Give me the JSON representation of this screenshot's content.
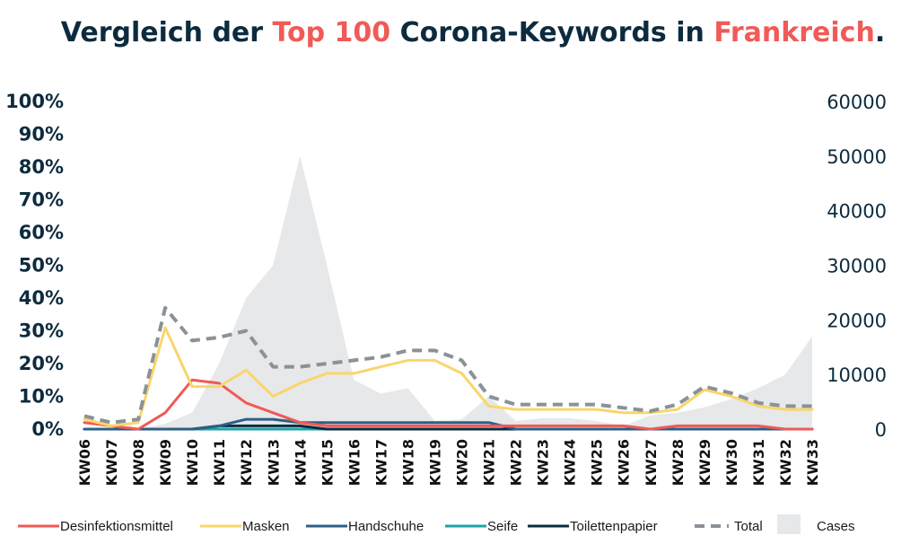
{
  "title": {
    "parts": [
      {
        "text": "Vergleich der ",
        "accent": false
      },
      {
        "text": "Top 100",
        "accent": true
      },
      {
        "text": " Corona-Keywords in ",
        "accent": false
      },
      {
        "text": "Frankreich",
        "accent": true
      },
      {
        "text": ".",
        "accent": false
      }
    ]
  },
  "colors": {
    "title": "#0d2b3e",
    "accent": "#f05a57",
    "grid_text": "#0d2b3e"
  },
  "chart_data": {
    "type": "line",
    "x": [
      "KW06",
      "KW07",
      "KW08",
      "KW09",
      "KW10",
      "KW11",
      "KW12",
      "KW13",
      "KW14",
      "KW15",
      "KW16",
      "KW17",
      "KW18",
      "KW19",
      "KW20",
      "KW21",
      "KW22",
      "KW23",
      "KW24",
      "KW25",
      "KW26",
      "KW27",
      "KW28",
      "KW29",
      "KW30",
      "KW31",
      "KW32",
      "KW33"
    ],
    "y_left": {
      "ticks": [
        "0%",
        "10%",
        "20%",
        "30%",
        "40%",
        "50%",
        "60%",
        "70%",
        "80%",
        "90%",
        "100%"
      ],
      "ylim": [
        0,
        100
      ]
    },
    "y_right": {
      "ticks": [
        "0",
        "10000",
        "20000",
        "30000",
        "40000",
        "50000",
        "60000"
      ],
      "ylim": [
        0,
        60000
      ]
    },
    "grid": false,
    "legend_position": "bottom",
    "series": [
      {
        "name": "Desinfektionsmittel",
        "color": "#f05a57",
        "style": "solid",
        "axis": "left",
        "values": [
          2,
          1,
          0,
          5,
          15,
          14,
          8,
          5,
          2,
          1,
          1,
          1,
          1,
          1,
          1,
          1,
          1,
          1,
          1,
          1,
          1,
          0,
          1,
          1,
          1,
          1,
          0,
          0
        ]
      },
      {
        "name": "Masken",
        "color": "#f9d66b",
        "style": "solid",
        "axis": "left",
        "values": [
          3,
          1,
          2,
          31,
          13,
          13,
          18,
          10,
          14,
          17,
          17,
          19,
          21,
          21,
          17,
          7,
          6,
          6,
          6,
          6,
          5,
          5,
          6,
          12,
          10,
          7,
          6,
          6
        ]
      },
      {
        "name": "Handschuhe",
        "color": "#2d5f86",
        "style": "solid",
        "axis": "left",
        "values": [
          0,
          0,
          0,
          0,
          0,
          1,
          3,
          3,
          2,
          2,
          2,
          2,
          2,
          2,
          2,
          2,
          0,
          0,
          0,
          0,
          0,
          0,
          0,
          0,
          0,
          0,
          0,
          0
        ]
      },
      {
        "name": "Seife",
        "color": "#1fa3a8",
        "style": "solid",
        "axis": "left",
        "values": [
          0,
          0,
          0,
          0,
          0,
          0,
          0,
          0,
          0,
          0,
          0,
          0,
          0,
          0,
          0,
          0,
          0,
          0,
          0,
          0,
          0,
          0,
          0,
          0,
          0,
          0,
          0,
          0
        ]
      },
      {
        "name": "Toilettenpapier",
        "color": "#0d2b3e",
        "style": "solid",
        "axis": "left",
        "values": [
          0,
          0,
          0,
          0,
          0,
          1,
          1,
          1,
          1,
          0,
          0,
          0,
          0,
          0,
          0,
          0,
          0,
          0,
          0,
          0,
          0,
          0,
          0,
          0,
          0,
          0,
          0,
          0
        ]
      },
      {
        "name": "Total",
        "color": "#8a9298",
        "style": "dashed",
        "axis": "left",
        "values": [
          4,
          2,
          3,
          37,
          27,
          28,
          30,
          19,
          19,
          20,
          21,
          22,
          24,
          24,
          21,
          10,
          7.5,
          7.5,
          7.5,
          7.5,
          6.5,
          5.5,
          7.5,
          13,
          11,
          8,
          7,
          7
        ]
      },
      {
        "name": "Cases",
        "color": "#e6e8ea",
        "style": "area",
        "axis": "right",
        "values": [
          0,
          0,
          0,
          1000,
          3000,
          12000,
          24000,
          30000,
          50000,
          30000,
          9000,
          6500,
          7500,
          1500,
          1800,
          6000,
          1500,
          2000,
          2000,
          1500,
          600,
          2500,
          3000,
          4000,
          5500,
          7500,
          10000,
          17000
        ]
      }
    ]
  },
  "legend": [
    {
      "label": "Desinfektionsmittel",
      "color": "#f05a57",
      "style": "line"
    },
    {
      "label": "Masken",
      "color": "#f9d66b",
      "style": "line"
    },
    {
      "label": "Handschuhe",
      "color": "#2d5f86",
      "style": "line"
    },
    {
      "label": "Seife",
      "color": "#1fa3a8",
      "style": "line"
    },
    {
      "label": "Toilettenpapier",
      "color": "#0d2b3e",
      "style": "line"
    },
    {
      "label": "Total",
      "color": "#8a9298",
      "style": "dashed"
    },
    {
      "label": "Cases",
      "color": "#e6e8ea",
      "style": "box"
    }
  ]
}
